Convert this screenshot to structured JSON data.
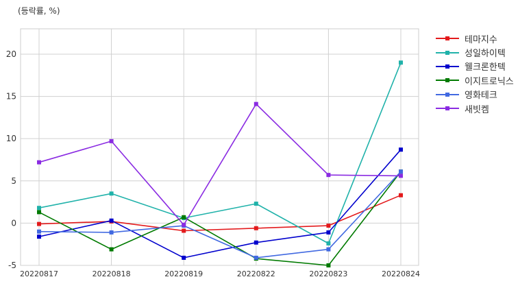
{
  "chart_data": {
    "type": "line",
    "unit_label": "(등락률, %)",
    "categories": [
      "20220817",
      "20220818",
      "20220819",
      "20220822",
      "20220823",
      "20220824"
    ],
    "ylim": [
      -5,
      23
    ],
    "yticks": [
      -5,
      0,
      5,
      10,
      15,
      20
    ],
    "grid": true,
    "legend_position": "right",
    "series": [
      {
        "name": "테마지수",
        "color": "#e31a1c",
        "values": [
          -0.1,
          0.2,
          -0.9,
          -0.6,
          -0.3,
          3.3
        ]
      },
      {
        "name": "성일하이텍",
        "color": "#20b2aa",
        "values": [
          1.8,
          3.5,
          0.6,
          2.3,
          -2.4,
          19.0
        ]
      },
      {
        "name": "웰크론한텍",
        "color": "#0000cd",
        "values": [
          -1.6,
          0.3,
          -4.1,
          -2.3,
          -1.1,
          8.7
        ]
      },
      {
        "name": "이지트로닉스",
        "color": "#007a00",
        "values": [
          1.3,
          -3.1,
          0.7,
          -4.2,
          -5.0,
          6.1
        ]
      },
      {
        "name": "영화테크",
        "color": "#4169e1",
        "values": [
          -1.0,
          -1.1,
          -0.3,
          -4.1,
          -3.1,
          6.1
        ]
      },
      {
        "name": "새빗켐",
        "color": "#8a2be2",
        "values": [
          7.2,
          9.7,
          -0.2,
          14.1,
          5.7,
          5.6
        ]
      }
    ]
  }
}
